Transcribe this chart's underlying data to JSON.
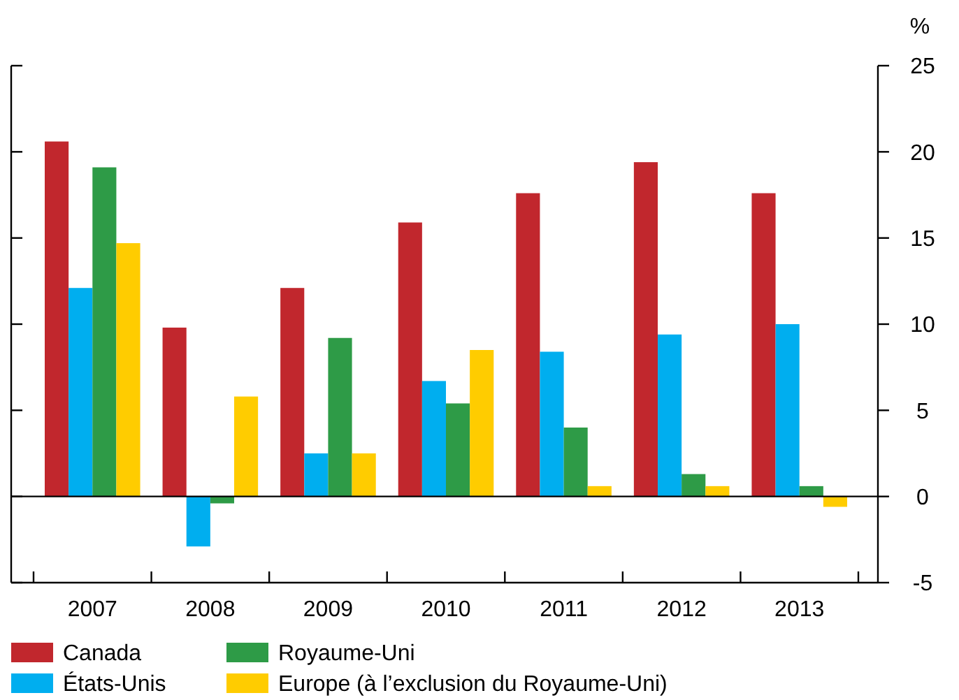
{
  "chart_data": {
    "type": "bar",
    "ylabel": "%",
    "categories": [
      "2007",
      "2008",
      "2009",
      "2010",
      "2011",
      "2012",
      "2013"
    ],
    "series": [
      {
        "name": "Canada",
        "color": "#c1272d",
        "values": [
          20.6,
          9.8,
          12.1,
          15.9,
          17.6,
          19.4,
          17.6
        ]
      },
      {
        "name": "États-Unis",
        "color": "#00aeef",
        "values": [
          12.1,
          -2.9,
          2.5,
          6.7,
          8.4,
          9.4,
          10.0
        ]
      },
      {
        "name": "Royaume-Uni",
        "color": "#2e9b47",
        "values": [
          19.1,
          -0.4,
          9.2,
          5.4,
          4.0,
          1.3,
          0.6
        ]
      },
      {
        "name": "Europe (à l’exclusion du Royaume-Uni)",
        "color": "#ffcc00",
        "values": [
          14.7,
          5.8,
          2.5,
          8.5,
          0.6,
          0.6,
          -0.6
        ]
      }
    ],
    "ylim": [
      -5,
      25
    ],
    "yticks": [
      -5,
      0,
      5,
      10,
      15,
      20,
      25
    ],
    "grid": false,
    "ref_lines": [
      {
        "axis": "y",
        "value": 0,
        "color": "#000000"
      }
    ],
    "legend": "bottom"
  }
}
